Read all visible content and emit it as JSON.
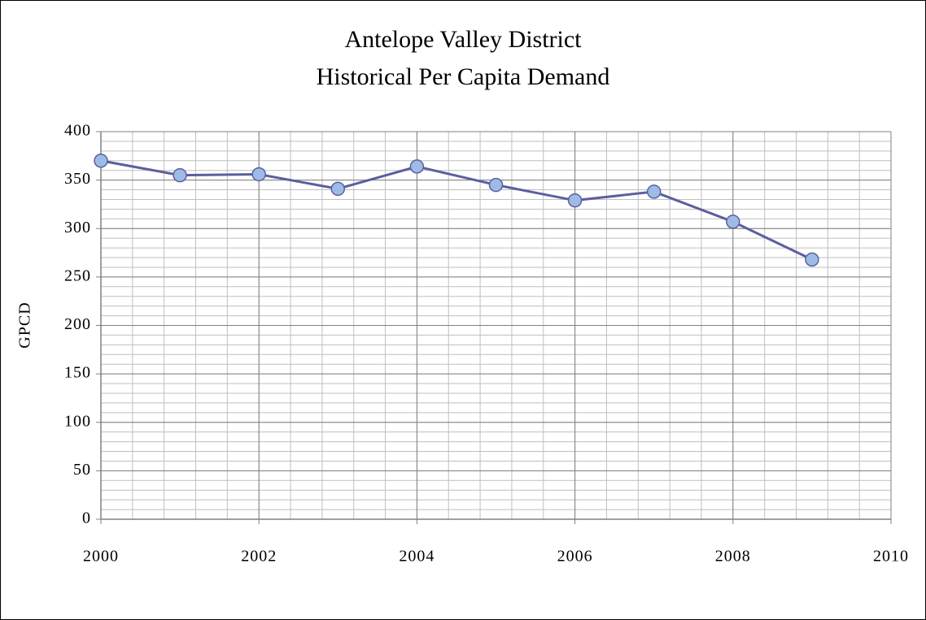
{
  "chart_data": {
    "type": "line",
    "title": "Antelope Valley District",
    "subtitle": "Historical Per Capita Demand",
    "y_label": "GPCD",
    "x": [
      2000,
      2001,
      2002,
      2003,
      2004,
      2005,
      2006,
      2007,
      2008,
      2009
    ],
    "series": [
      {
        "name": "GPCD",
        "color": "#5b5f9e",
        "marker_color": "#9dbbe6",
        "values": [
          370,
          355,
          356,
          341,
          364,
          345,
          329,
          338,
          307,
          268
        ]
      }
    ],
    "xlim": [
      2000,
      2010
    ],
    "xticks": [
      2000,
      2002,
      2004,
      2006,
      2008,
      2010
    ],
    "ylim": [
      0,
      400
    ],
    "yticks": [
      0,
      50,
      100,
      150,
      200,
      250,
      300,
      350,
      400
    ],
    "grid": true,
    "minor_grid": {
      "x": 0.4,
      "y": 10
    },
    "legend": false
  }
}
